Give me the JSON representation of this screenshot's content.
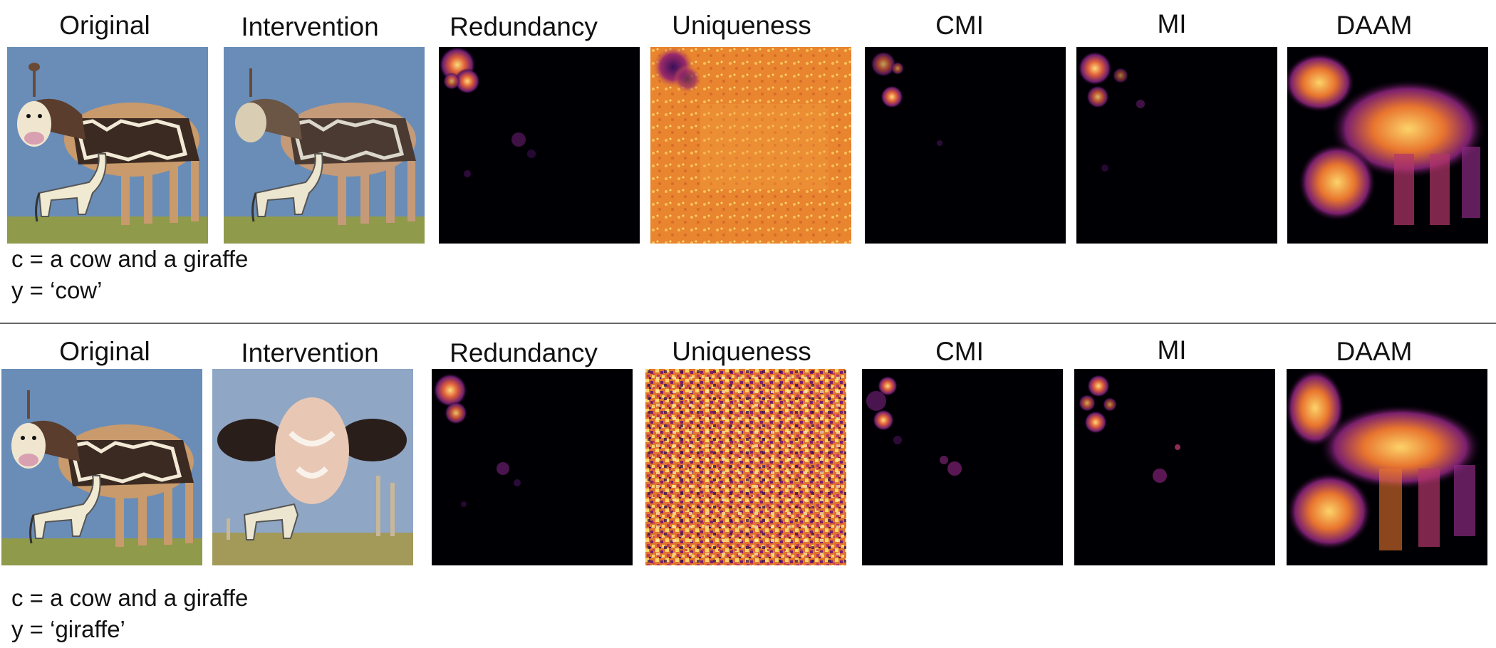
{
  "rows": [
    {
      "labels": [
        "Original",
        "Intervention",
        "Redundancy",
        "Uniqueness",
        "CMI",
        "MI",
        "DAAM"
      ],
      "caption_c": "c = a cow and a giraffe",
      "caption_y": "y = ‘cow’"
    },
    {
      "labels": [
        "Original",
        "Intervention",
        "Redundancy",
        "Uniqueness",
        "CMI",
        "MI",
        "DAAM"
      ],
      "caption_c": "c = a cow and a giraffe",
      "caption_y": "y = ‘giraffe’"
    }
  ],
  "colors": {
    "sky": "#6a8db8",
    "ground": "#8f9a4a",
    "heatmap_low": "#000004",
    "heatmap_mid": "#8c2981",
    "heatmap_high": "#fcfdbf",
    "uniqueness_row1": "#e8852e"
  }
}
